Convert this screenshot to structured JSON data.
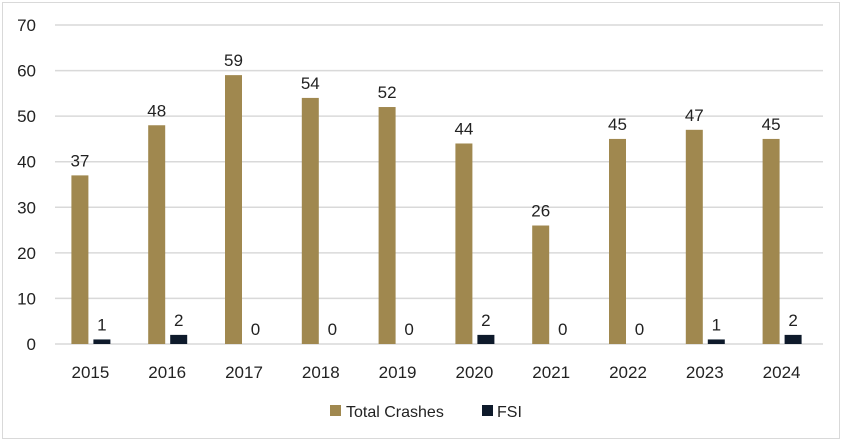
{
  "chart_data": {
    "type": "bar",
    "title": "",
    "xlabel": "",
    "ylabel": "",
    "categories": [
      "2015",
      "2016",
      "2017",
      "2018",
      "2019",
      "2020",
      "2021",
      "2022",
      "2023",
      "2024"
    ],
    "series": [
      {
        "name": "Total Crashes",
        "color": "#a0884f",
        "values": [
          37,
          48,
          59,
          54,
          52,
          44,
          26,
          45,
          47,
          45
        ]
      },
      {
        "name": "FSI",
        "color": "#0e1a2b",
        "values": [
          1,
          2,
          0,
          0,
          0,
          2,
          0,
          0,
          1,
          2
        ]
      }
    ],
    "ylim": [
      0,
      70
    ],
    "yticks": [
      0,
      10,
      20,
      30,
      40,
      50,
      60,
      70
    ],
    "grid": true,
    "data_labels": true,
    "legend": {
      "position": "bottom",
      "entries": [
        "Total Crashes",
        "FSI"
      ]
    }
  }
}
